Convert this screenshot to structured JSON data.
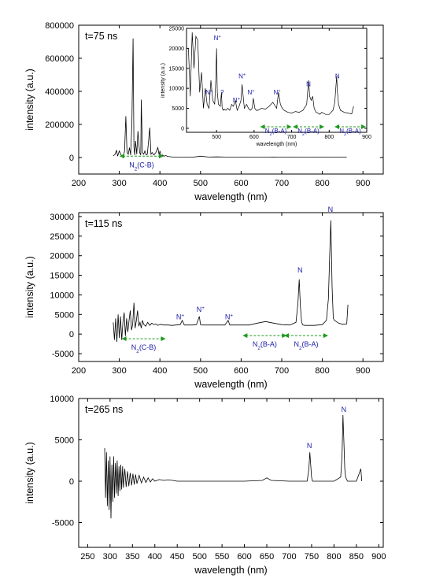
{
  "chart_data": [
    {
      "type": "line",
      "title": "t=75 ns",
      "xlabel": "wavelength (nm)",
      "ylabel": "intensity (a.u.)",
      "xlim": [
        200,
        950
      ],
      "ylim": [
        -100000,
        800000
      ],
      "xticks": [
        "200",
        "300",
        "400",
        "500",
        "600",
        "700",
        "800",
        "900"
      ],
      "yticks": [
        "0",
        "200000",
        "400000",
        "600000",
        "800000"
      ],
      "x": [
        285,
        290,
        293,
        296,
        300,
        305,
        310,
        313,
        316,
        319,
        322,
        325,
        328,
        331,
        334,
        336,
        338,
        340,
        343,
        346,
        350,
        353,
        354,
        357,
        360,
        363,
        366,
        369,
        372,
        375,
        378,
        381,
        385,
        390,
        395,
        398,
        400,
        403,
        406,
        410,
        415,
        420,
        425,
        430,
        440,
        460,
        480,
        500,
        520,
        540,
        560,
        580,
        600,
        620,
        640,
        660,
        680,
        700,
        720,
        740,
        760,
        780,
        800,
        820,
        840,
        860
      ],
      "values": [
        10000,
        20000,
        45000,
        8000,
        40000,
        12000,
        8000,
        40000,
        250000,
        30000,
        20000,
        60000,
        15000,
        210000,
        720000,
        60000,
        15000,
        100000,
        20000,
        160000,
        30000,
        15000,
        350000,
        30000,
        20000,
        40000,
        15000,
        20000,
        100000,
        180000,
        20000,
        30000,
        15000,
        30000,
        60000,
        15000,
        40000,
        10000,
        15000,
        8000,
        12000,
        5000,
        5000,
        3000,
        3000,
        3000,
        2000,
        8000,
        3000,
        4000,
        3000,
        3000,
        3000,
        2000,
        2000,
        2000,
        3000,
        2000,
        2000,
        3000,
        3000,
        3000,
        2000,
        3000,
        3000,
        2000
      ],
      "annotations": [
        {
          "text": "N₂(C-B)",
          "x": 355,
          "y": -30000
        }
      ],
      "inset": {
        "type": "line",
        "xlabel": "wavelength (nm)",
        "ylabel": "intensity (a.u.)",
        "xlim": [
          420,
          900
        ],
        "ylim": [
          -1000,
          25000
        ],
        "xticks": [
          "500",
          "600",
          "700",
          "800",
          "900"
        ],
        "yticks": [
          "0",
          "5000",
          "10000",
          "15000",
          "20000",
          "25000"
        ],
        "x": [
          425,
          430,
          435,
          440,
          445,
          450,
          455,
          460,
          465,
          470,
          475,
          480,
          485,
          490,
          495,
          498,
          500,
          502,
          505,
          510,
          513,
          515,
          518,
          520,
          525,
          530,
          535,
          540,
          545,
          550,
          555,
          560,
          565,
          568,
          571,
          574,
          580,
          585,
          590,
          595,
          598,
          602,
          606,
          610,
          620,
          630,
          640,
          650,
          660,
          665,
          670,
          675,
          680,
          690,
          700,
          710,
          720,
          730,
          740,
          745,
          748,
          752,
          756,
          760,
          765,
          770,
          775,
          780,
          790,
          800,
          810,
          815,
          820,
          822,
          825,
          830,
          840,
          850,
          860,
          865
        ],
        "values": [
          20000,
          8000,
          24000,
          15000,
          23000,
          22000,
          9000,
          14000,
          5000,
          10000,
          6000,
          5000,
          12000,
          7000,
          6000,
          12000,
          20000,
          9000,
          6000,
          5500,
          9000,
          5000,
          4500,
          4800,
          4500,
          5000,
          4500,
          6000,
          5500,
          7000,
          4500,
          5500,
          7000,
          11000,
          8000,
          5000,
          6000,
          5000,
          4500,
          5000,
          7500,
          5000,
          4500,
          4500,
          5000,
          4800,
          5500,
          6500,
          5000,
          9000,
          6000,
          5000,
          4500,
          4000,
          3800,
          4200,
          4000,
          4500,
          6000,
          12000,
          8000,
          7000,
          8000,
          5000,
          4000,
          3800,
          3500,
          4000,
          3500,
          3500,
          4500,
          6500,
          13000,
          9000,
          6000,
          4500,
          4000,
          3800,
          3600,
          5500
        ],
        "annotations": [
          {
            "text": "N⁺",
            "x": 480,
            "y": 8500
          },
          {
            "text": "N⁺",
            "x": 502,
            "y": 22000
          },
          {
            "text": "?",
            "x": 515,
            "y": 8500
          },
          {
            "text": "N⁺",
            "x": 553,
            "y": 6500
          },
          {
            "text": "N⁺",
            "x": 568,
            "y": 12500
          },
          {
            "text": "N⁺",
            "x": 592,
            "y": 8500
          },
          {
            "text": "N⁺",
            "x": 661,
            "y": 8500
          },
          {
            "text": "N",
            "x": 745,
            "y": 10500
          },
          {
            "text": "N",
            "x": 822,
            "y": 12500
          },
          {
            "text": "N₂(B-A)",
            "x": 658,
            "y": -800
          },
          {
            "text": "N₂(B-A)",
            "x": 745,
            "y": -800
          },
          {
            "text": "N₂(B-A)",
            "x": 856,
            "y": -800
          }
        ]
      }
    },
    {
      "type": "line",
      "title": "t=115 ns",
      "xlabel": "wavelength (nm)",
      "ylabel": "intensity (a.u.)",
      "xlim": [
        200,
        950
      ],
      "ylim": [
        -7000,
        31000
      ],
      "xticks": [
        "200",
        "300",
        "400",
        "500",
        "600",
        "700",
        "800",
        "900"
      ],
      "yticks": [
        "-5000",
        "0",
        "5000",
        "10000",
        "15000",
        "20000",
        "25000",
        "30000"
      ],
      "x": [
        285,
        288,
        291,
        294,
        297,
        300,
        303,
        306,
        309,
        312,
        315,
        318,
        321,
        324,
        327,
        330,
        333,
        336,
        339,
        342,
        345,
        348,
        351,
        354,
        357,
        360,
        365,
        370,
        375,
        380,
        385,
        390,
        395,
        400,
        410,
        420,
        430,
        440,
        450,
        455,
        460,
        470,
        480,
        490,
        497,
        500,
        503,
        510,
        520,
        540,
        560,
        568,
        572,
        580,
        600,
        620,
        640,
        660,
        680,
        700,
        720,
        735,
        740,
        743,
        746,
        749,
        752,
        758,
        770,
        780,
        790,
        800,
        810,
        815,
        818,
        821,
        824,
        827,
        830,
        840,
        850,
        860,
        863
      ],
      "values": [
        3000,
        -1500,
        4000,
        -2000,
        5000,
        -1000,
        4500,
        -1500,
        3000,
        5500,
        -500,
        4000,
        500,
        3500,
        6000,
        1000,
        2500,
        8000,
        1500,
        3500,
        6000,
        2000,
        3000,
        1500,
        3500,
        2500,
        2000,
        3000,
        2200,
        2800,
        2400,
        2600,
        2200,
        2500,
        2300,
        2300,
        2200,
        2300,
        2400,
        3500,
        2300,
        2300,
        2300,
        2400,
        4500,
        2400,
        2300,
        2300,
        2300,
        2300,
        2300,
        3500,
        2300,
        2300,
        2300,
        2300,
        2800,
        3200,
        2800,
        2400,
        2300,
        3000,
        8000,
        14000,
        7000,
        3000,
        2300,
        2200,
        2200,
        2200,
        2300,
        2400,
        3500,
        9000,
        20000,
        29000,
        12000,
        4000,
        3500,
        2800,
        2500,
        2600,
        7500
      ],
      "annotations": [
        {
          "text": "N⁺",
          "x": 450,
          "y": 3800
        },
        {
          "text": "N⁺",
          "x": 500,
          "y": 5700
        },
        {
          "text": "N⁺",
          "x": 570,
          "y": 3800
        },
        {
          "text": "N",
          "x": 745,
          "y": 15700
        },
        {
          "text": "N",
          "x": 820,
          "y": 31200
        },
        {
          "text": "N₂(C-B)",
          "x": 360,
          "y": -2800
        },
        {
          "text": "N₂(B-A)",
          "x": 658,
          "y": -2000
        },
        {
          "text": "N₂(B-A)",
          "x": 760,
          "y": -2000
        }
      ]
    },
    {
      "type": "line",
      "title": "t=265 ns",
      "xlabel": "wavelength (nm)",
      "ylabel": "intensity (a.u.)",
      "xlim": [
        230,
        910
      ],
      "ylim": [
        -8000,
        10000
      ],
      "xticks": [
        "250",
        "300",
        "350",
        "400",
        "450",
        "500",
        "550",
        "600",
        "650",
        "700",
        "750",
        "800",
        "850",
        "900"
      ],
      "yticks": [
        "-5000",
        "0",
        "5000",
        "10000"
      ],
      "x": [
        288,
        290,
        292,
        294,
        296,
        298,
        300,
        302,
        304,
        306,
        308,
        310,
        312,
        314,
        316,
        318,
        320,
        322,
        324,
        326,
        328,
        330,
        333,
        336,
        339,
        342,
        345,
        348,
        351,
        354,
        357,
        360,
        365,
        370,
        375,
        380,
        385,
        390,
        395,
        400,
        410,
        420,
        430,
        440,
        450,
        470,
        500,
        550,
        600,
        640,
        650,
        660,
        700,
        740,
        744,
        746,
        748,
        750,
        752,
        760,
        800,
        815,
        818,
        820,
        822,
        824,
        826,
        830,
        840,
        850,
        860,
        862
      ],
      "values": [
        4000,
        -2000,
        3500,
        -3000,
        2500,
        -3500,
        3000,
        -4500,
        2000,
        -2500,
        3000,
        -2000,
        2200,
        -1500,
        2500,
        -1800,
        1800,
        -1200,
        2000,
        -1000,
        1800,
        -800,
        1500,
        -700,
        1200,
        -600,
        1000,
        -500,
        900,
        -400,
        800,
        -300,
        700,
        -200,
        500,
        -150,
        400,
        -100,
        300,
        0,
        200,
        100,
        150,
        100,
        0,
        0,
        0,
        0,
        0,
        100,
        400,
        100,
        0,
        0,
        1500,
        3500,
        2000,
        500,
        0,
        0,
        0,
        500,
        3000,
        8000,
        5000,
        1500,
        500,
        0,
        0,
        0,
        1500,
        0
      ],
      "annotations": [
        {
          "text": "N",
          "x": 745,
          "y": 4000
        },
        {
          "text": "N",
          "x": 822,
          "y": 8400
        }
      ]
    }
  ]
}
